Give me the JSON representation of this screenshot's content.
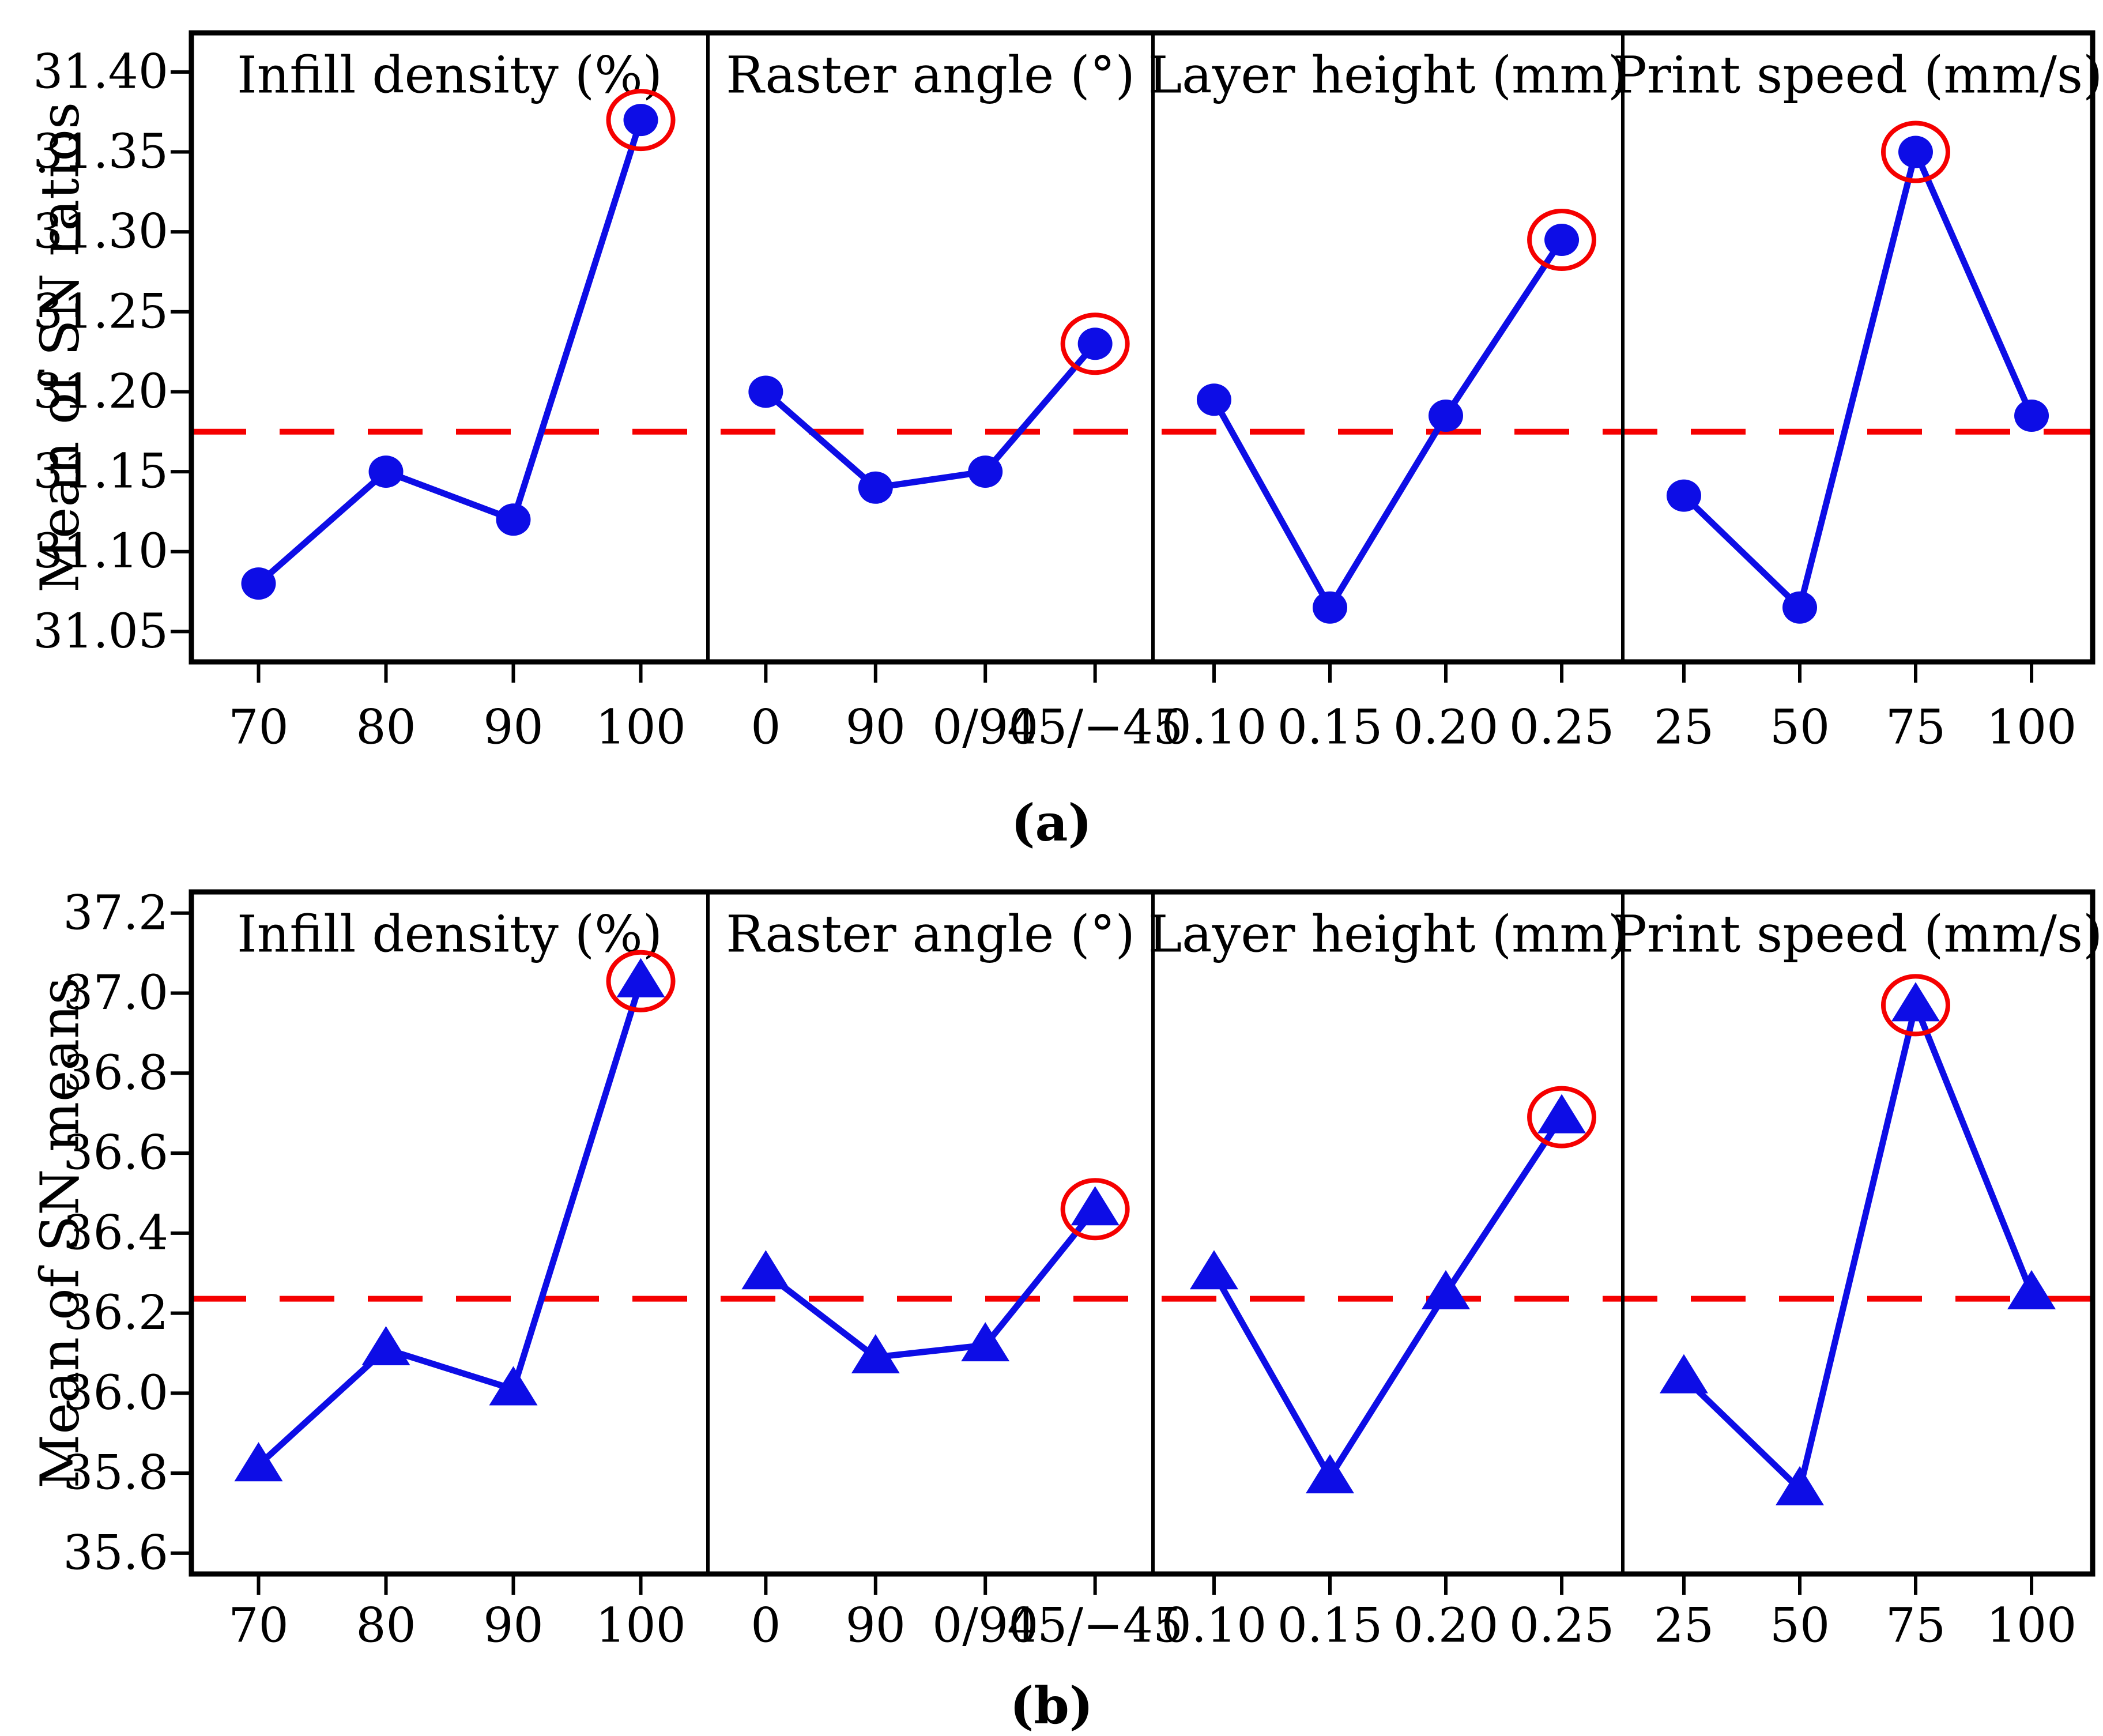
{
  "figure": {
    "background": "#ffffff",
    "captions": {
      "a": "(a)",
      "b": "(b)"
    }
  },
  "colors": {
    "series": "#0d0de6",
    "marker": "#0d0de6",
    "dashed_mean": "#f50000",
    "highlight_ring": "#f50000",
    "axis": "#000000",
    "text": "#000000"
  },
  "chart_data": [
    {
      "type": "line",
      "caption": "(a)",
      "ylabel": "Mean of SN ratios",
      "marker": "circle",
      "grid": false,
      "legend": "none",
      "ylim": [
        31.031,
        31.4245
      ],
      "yticks": [
        31.05,
        31.1,
        31.15,
        31.2,
        31.25,
        31.3,
        31.35,
        31.4
      ],
      "ytick_labels": [
        "31.05",
        "31.10",
        "31.15",
        "31.20",
        "31.25",
        "31.30",
        "31.35",
        "31.40"
      ],
      "mean_line": 31.175,
      "panels": [
        {
          "title": "Infill density (%)",
          "categories": [
            "70",
            "80",
            "90",
            "100"
          ],
          "values": [
            31.08,
            31.15,
            31.12,
            31.37
          ],
          "highlight_index": 3
        },
        {
          "title": "Raster angle (°)",
          "categories": [
            "0",
            "90",
            "0/90",
            "45/−45"
          ],
          "values": [
            31.2,
            31.14,
            31.15,
            31.23
          ],
          "highlight_index": 3
        },
        {
          "title": "Layer height (mm)",
          "categories": [
            "0.10",
            "0.15",
            "0.20",
            "0.25"
          ],
          "values": [
            31.195,
            31.065,
            31.185,
            31.295
          ],
          "highlight_index": 3
        },
        {
          "title": "Print speed (mm/s)",
          "categories": [
            "25",
            "50",
            "75",
            "100"
          ],
          "values": [
            31.135,
            31.065,
            31.35,
            31.185
          ],
          "highlight_index": 2
        }
      ]
    },
    {
      "type": "line",
      "caption": "(b)",
      "ylabel": "Mean of SN means",
      "marker": "triangle",
      "grid": false,
      "legend": "none",
      "ylim": [
        35.548,
        37.253
      ],
      "yticks": [
        35.6,
        35.8,
        36.0,
        36.2,
        36.4,
        36.6,
        36.8,
        37.0,
        37.2
      ],
      "ytick_labels": [
        "35.6",
        "35.8",
        "36.0",
        "36.2",
        "36.4",
        "36.6",
        "36.8",
        "37.0",
        "37.2"
      ],
      "mean_line": 36.236,
      "panels": [
        {
          "title": "Infill density (%)",
          "categories": [
            "70",
            "80",
            "90",
            "100"
          ],
          "values": [
            35.82,
            36.11,
            36.01,
            37.03
          ],
          "highlight_index": 3
        },
        {
          "title": "Raster angle (°)",
          "categories": [
            "0",
            "90",
            "0/90",
            "45/−45"
          ],
          "values": [
            36.3,
            36.09,
            36.12,
            36.46
          ],
          "highlight_index": 3
        },
        {
          "title": "Layer height (mm)",
          "categories": [
            "0.10",
            "0.15",
            "0.20",
            "0.25"
          ],
          "values": [
            36.3,
            35.79,
            36.25,
            36.69
          ],
          "highlight_index": 3
        },
        {
          "title": "Print speed (mm/s)",
          "categories": [
            "25",
            "50",
            "75",
            "100"
          ],
          "values": [
            36.04,
            35.76,
            36.97,
            36.25
          ],
          "highlight_index": 2
        }
      ]
    }
  ]
}
